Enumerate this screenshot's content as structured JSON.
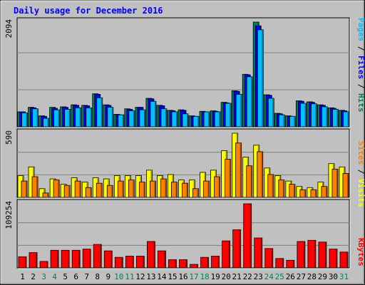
{
  "chart_data": {
    "type": "bar",
    "title": "Daily usage for December 2016",
    "categories": [
      "1",
      "2",
      "3",
      "4",
      "5",
      "6",
      "7",
      "8",
      "9",
      "10",
      "11",
      "12",
      "13",
      "14",
      "15",
      "16",
      "17",
      "18",
      "19",
      "20",
      "21",
      "22",
      "23",
      "24",
      "25",
      "26",
      "27",
      "28",
      "29",
      "30",
      "31"
    ],
    "weekend_days": [
      "3",
      "4",
      "10",
      "11",
      "17",
      "18",
      "24",
      "25",
      "31"
    ],
    "panels": [
      {
        "id": "hits",
        "ymax_label": "2094",
        "ylim": [
          0,
          2094
        ],
        "series": [
          {
            "name": "Hits",
            "color": "#00805c",
            "values": [
              300,
              390,
              220,
              390,
              400,
              440,
              430,
              660,
              440,
              250,
              360,
              390,
              570,
              430,
              330,
              340,
              220,
              310,
              320,
              490,
              720,
              1050,
              2094,
              640,
              270,
              220,
              520,
              500,
              440,
              380,
              330
            ]
          },
          {
            "name": "Files",
            "color": "#0000ff",
            "values": [
              300,
              380,
              210,
              370,
              390,
              430,
              420,
              650,
              430,
              240,
              350,
              390,
              560,
              420,
              320,
              330,
              210,
              300,
              310,
              480,
              710,
              1040,
              2020,
              630,
              260,
              210,
              510,
              490,
              430,
              370,
              320
            ]
          },
          {
            "name": "Pages",
            "color": "#00c0ff",
            "values": [
              280,
              360,
              170,
              340,
              350,
              380,
              380,
              580,
              390,
              240,
              320,
              340,
              510,
              360,
              300,
              260,
              210,
              300,
              300,
              470,
              650,
              1000,
              1940,
              570,
              240,
              210,
              470,
              460,
              400,
              350,
              300
            ]
          }
        ]
      },
      {
        "id": "visits",
        "ymax_label": "590",
        "ylim": [
          0,
          590
        ],
        "series": [
          {
            "name": "Visits",
            "color": "#ffff00",
            "values": [
              200,
              280,
              80,
              170,
              120,
              180,
              140,
              180,
              170,
              200,
              200,
              200,
              250,
              200,
              210,
              160,
              160,
              230,
              250,
              430,
              590,
              370,
              480,
              270,
              200,
              150,
              100,
              90,
              140,
              310,
              280
            ]
          },
          {
            "name": "Sites",
            "color": "#ff8000",
            "values": [
              150,
              190,
              40,
              160,
              110,
              150,
              90,
              130,
              110,
              150,
              160,
              140,
              150,
              170,
              140,
              130,
              80,
              150,
              190,
              350,
              500,
              290,
              420,
              210,
              160,
              120,
              70,
              70,
              100,
              260,
              220
            ]
          }
        ]
      },
      {
        "id": "kbytes",
        "ymax_label": "109254",
        "ylim": [
          0,
          109254
        ],
        "series": [
          {
            "name": "KBytes",
            "color": "#ff0000",
            "values": [
              19000,
              26000,
              11000,
              30000,
              30000,
              30000,
              32000,
              40000,
              29000,
              18000,
              20000,
              20000,
              45000,
              29000,
              14000,
              14000,
              6000,
              18000,
              20000,
              46000,
              65000,
              109254,
              51000,
              33000,
              16000,
              13000,
              45000,
              47000,
              44000,
              32000,
              27000
            ]
          }
        ]
      }
    ],
    "legend": {
      "top": [
        {
          "text": "Pages",
          "color": "#00c0ff"
        },
        {
          "text": " / ",
          "color": "#000000"
        },
        {
          "text": "Files",
          "color": "#0000ff"
        },
        {
          "text": " / ",
          "color": "#000000"
        },
        {
          "text": "Hits",
          "color": "#00805c"
        }
      ],
      "middle": [
        {
          "text": "Sites",
          "color": "#ff8000"
        },
        {
          "text": " / ",
          "color": "#000000"
        },
        {
          "text": "Visits",
          "color": "#ffff00"
        }
      ],
      "bottom": [
        {
          "text": "KBytes",
          "color": "#ff0000"
        }
      ]
    },
    "colors": {
      "title": "#0000ff",
      "plot_bg": "#c0c0c0",
      "outer_bg": "#c0c0c0",
      "weekday_label": "#000000",
      "weekend_label": "#00805c"
    }
  }
}
